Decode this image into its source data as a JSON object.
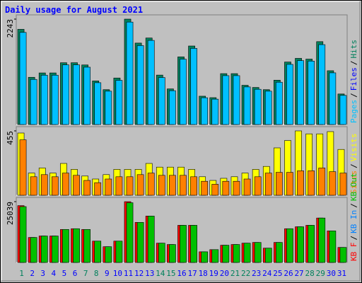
{
  "chart_data": [
    {
      "type": "bar",
      "title": "Daily usage for August 2021",
      "ylim": [
        0,
        2243
      ],
      "yticks": [
        2243
      ],
      "legend": [
        {
          "label": "Pages",
          "color": "#00c0ff"
        },
        {
          "label": "Files",
          "color": "#0000ff"
        },
        {
          "label": "Hits",
          "color": "#00805c"
        }
      ],
      "legend_separator": "/",
      "series": [
        {
          "name": "Hits",
          "color": "#00805c",
          "values": [
            2026,
            1005,
            1098,
            1098,
            1315,
            1315,
            1268,
            928,
            742,
            990,
            2243,
            1733,
            1841,
            1052,
            758,
            1439,
            1671,
            603,
            572,
            1083,
            1083,
            835,
            789,
            742,
            944,
            1330,
            1408,
            1392,
            1764,
            1145,
            650
          ]
        },
        {
          "name": "Pages",
          "color": "#00c0ff",
          "values": [
            1960,
            960,
            1050,
            1050,
            1270,
            1270,
            1220,
            890,
            710,
            940,
            2180,
            1680,
            1790,
            1000,
            720,
            1390,
            1620,
            570,
            540,
            1040,
            1040,
            800,
            750,
            710,
            900,
            1280,
            1360,
            1350,
            1700,
            1100,
            620
          ]
        }
      ]
    },
    {
      "type": "bar",
      "ylim": [
        0,
        455
      ],
      "yticks": [
        455
      ],
      "legend": [
        {
          "label": "Sites",
          "color": "#ff8000"
        },
        {
          "label": "Visits",
          "color": "#ffff00"
        }
      ],
      "legend_separator": "/",
      "series": [
        {
          "name": "Visits",
          "color": "#ffff00",
          "values": [
            440,
            157,
            193,
            157,
            225,
            183,
            136,
            115,
            146,
            183,
            183,
            183,
            225,
            199,
            199,
            199,
            183,
            131,
            105,
            120,
            131,
            157,
            183,
            204,
            335,
            387,
            455,
            434,
            434,
            450,
            324
          ]
        },
        {
          "name": "Sites",
          "color": "#ff8000",
          "values": [
            392,
            131,
            146,
            131,
            157,
            141,
            105,
            89,
            115,
            131,
            131,
            146,
            157,
            141,
            141,
            141,
            131,
            99,
            78,
            99,
            99,
            115,
            131,
            157,
            162,
            162,
            173,
            173,
            193,
            167,
            157
          ]
        }
      ]
    },
    {
      "type": "bar",
      "ylim": [
        0,
        25039
      ],
      "yticks": [
        25039
      ],
      "legend": [
        {
          "label": "KB F",
          "color": "#ff0000"
        },
        {
          "label": "KB In",
          "color": "#0080ff"
        },
        {
          "label": "KB Out",
          "color": "#00c000"
        }
      ],
      "legend_separator": "/",
      "categories": [
        "1",
        "2",
        "3",
        "4",
        "5",
        "6",
        "7",
        "8",
        "9",
        "10",
        "11",
        "12",
        "13",
        "14",
        "15",
        "16",
        "17",
        "18",
        "19",
        "20",
        "21",
        "22",
        "23",
        "24",
        "25",
        "26",
        "27",
        "28",
        "29",
        "30",
        "31"
      ],
      "category_colors": [
        "#00805c",
        "#0000ff",
        "#0000ff",
        "#0000ff",
        "#0000ff",
        "#0000ff",
        "#00805c",
        "#00805c",
        "#0000ff",
        "#0000ff",
        "#0000ff",
        "#0000ff",
        "#0000ff",
        "#00805c",
        "#00805c",
        "#0000ff",
        "#0000ff",
        "#0000ff",
        "#0000ff",
        "#0000ff",
        "#00805c",
        "#00805c",
        "#0000ff",
        "#0000ff",
        "#0000ff",
        "#0000ff",
        "#0000ff",
        "#00805c",
        "#00805c",
        "#0000ff",
        "#0000ff"
      ],
      "series": [
        {
          "name": "KB F",
          "color": "#ff0000",
          "values": [
            23400,
            10300,
            10900,
            10900,
            13600,
            13900,
            13600,
            8800,
            6500,
            8800,
            25039,
            16500,
            19100,
            7950,
            7400,
            15300,
            15300,
            4400,
            5300,
            7100,
            7400,
            7950,
            8250,
            5900,
            8250,
            13900,
            14700,
            15300,
            18300,
            13000,
            6200
          ]
        },
        {
          "name": "KB Out",
          "color": "#00c000",
          "values": [
            23000,
            10300,
            10900,
            10900,
            13600,
            13900,
            13600,
            8800,
            6500,
            8800,
            24600,
            16500,
            19100,
            7950,
            7400,
            15300,
            15300,
            4400,
            5300,
            7100,
            7400,
            7950,
            8250,
            5900,
            8250,
            13900,
            14700,
            15300,
            18300,
            13000,
            6200
          ]
        }
      ]
    }
  ]
}
